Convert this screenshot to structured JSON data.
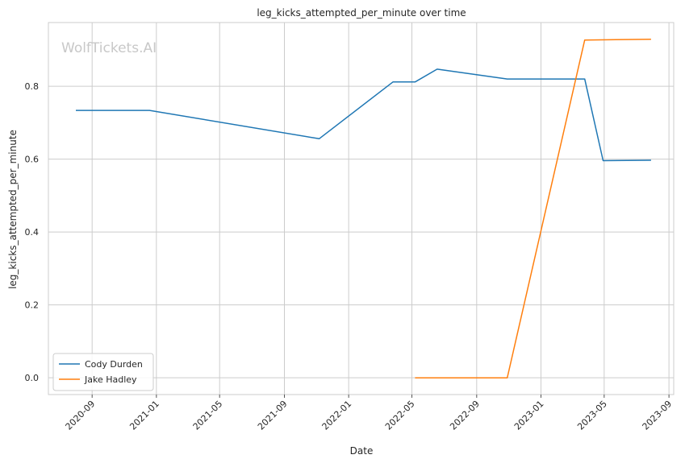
{
  "chart_data": {
    "type": "line",
    "title": "leg_kicks_attempted_per_minute over time",
    "xlabel": "Date",
    "ylabel": "leg_kicks_attempted_per_minute",
    "watermark": "WolfTickets.AI",
    "grid": true,
    "legend_position": "lower-left",
    "x_axis_type": "date",
    "xlim": [
      "2020-06-10",
      "2023-09-10"
    ],
    "ylim": [
      -0.046,
      0.975
    ],
    "x_ticks": [
      "2020-09",
      "2021-01",
      "2021-05",
      "2021-09",
      "2022-01",
      "2022-05",
      "2022-09",
      "2023-01",
      "2023-05",
      "2023-09"
    ],
    "y_ticks": [
      "0.0",
      "0.2",
      "0.4",
      "0.6",
      "0.8"
    ],
    "series": [
      {
        "name": "Cody Durden",
        "color": "#1f77b4",
        "x": [
          "2020-08-01",
          "2020-12-19",
          "2021-11-06",
          "2022-03-26",
          "2022-05-07",
          "2022-06-18",
          "2022-10-29",
          "2023-03-25",
          "2023-04-29",
          "2023-07-29"
        ],
        "y": [
          0.734,
          0.734,
          0.656,
          0.812,
          0.812,
          0.847,
          0.82,
          0.82,
          0.596,
          0.597
        ]
      },
      {
        "name": "Jake Hadley",
        "color": "#ff7f0e",
        "x": [
          "2022-05-07",
          "2022-10-29",
          "2023-03-25",
          "2023-07-29"
        ],
        "y": [
          0.0,
          0.0,
          0.927,
          0.929
        ]
      }
    ]
  }
}
